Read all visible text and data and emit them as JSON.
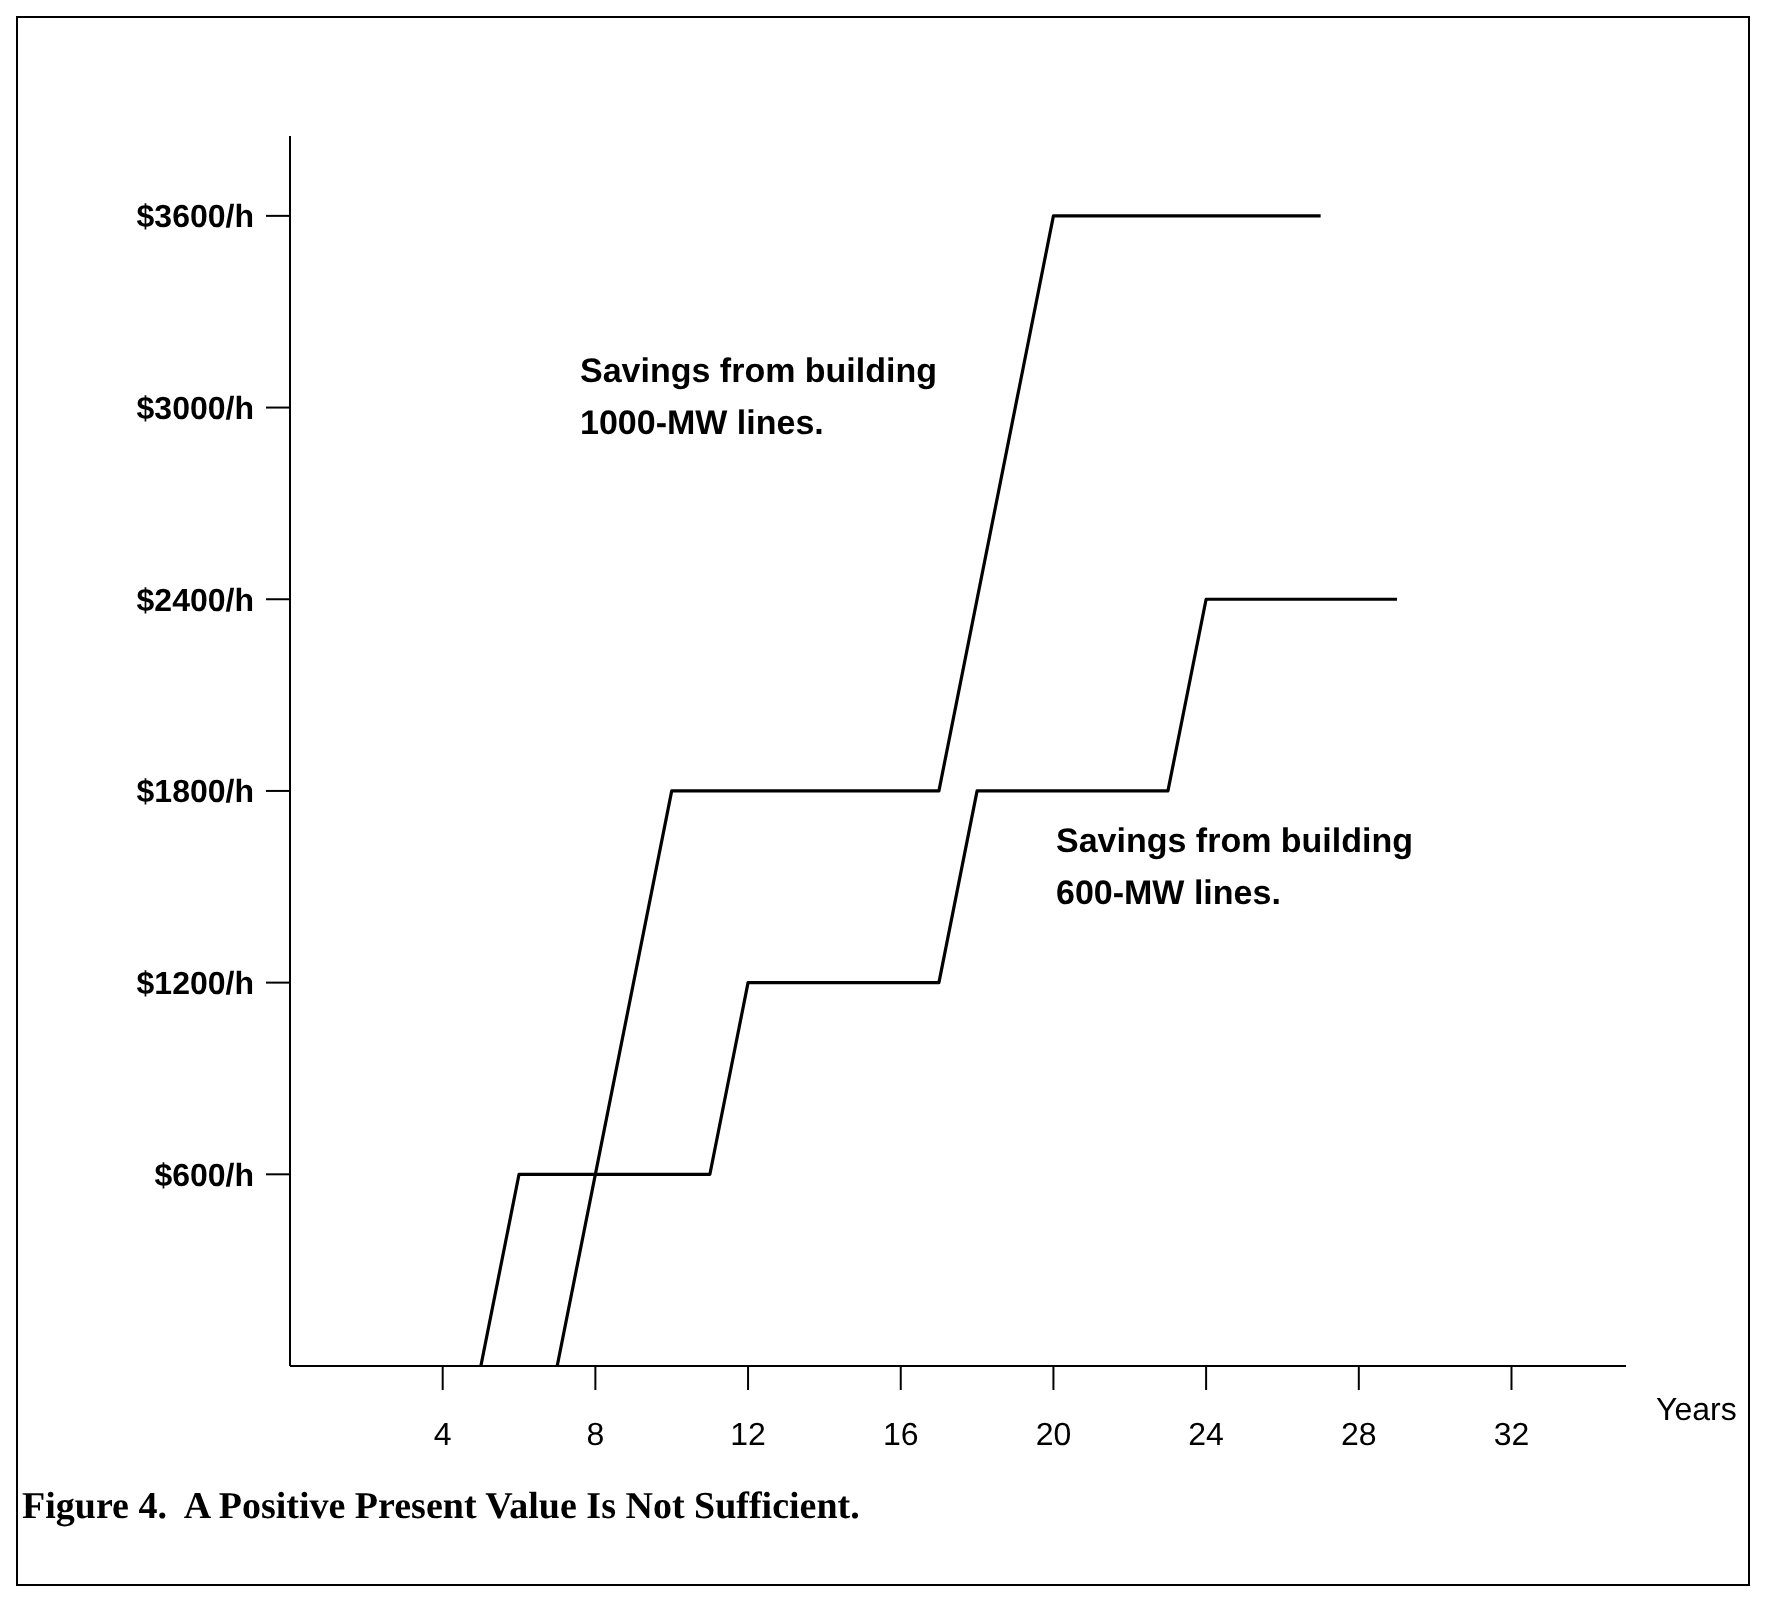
{
  "chart_data": {
    "type": "line",
    "title": "Figure 4.  A Positive Present Value Is Not Sufficient.",
    "xlabel": "Years",
    "series": [
      {
        "name": "Savings from building 1000-MW lines.",
        "color": "#000000",
        "x": [
          7,
          10,
          17,
          20,
          27
        ],
        "values": [
          0,
          1800,
          1800,
          3600,
          3600
        ]
      },
      {
        "name": "Savings from building 600-MW lines.",
        "color": "#000000",
        "x": [
          5,
          6,
          11,
          12,
          17,
          18,
          23,
          24,
          29
        ],
        "values": [
          0,
          600,
          600,
          1200,
          1200,
          1800,
          1800,
          2400,
          2400
        ]
      }
    ],
    "xlim": [
      0,
      35
    ],
    "xticks": [
      4,
      8,
      12,
      16,
      20,
      24,
      28,
      32
    ],
    "ylim": [
      0,
      3850
    ],
    "yticks": [
      {
        "value": 600,
        "label": "$600/h"
      },
      {
        "value": 1200,
        "label": "$1200/h"
      },
      {
        "value": 1800,
        "label": "$1800/h"
      },
      {
        "value": 2400,
        "label": "$2400/h"
      },
      {
        "value": 3000,
        "label": "$3000/h"
      },
      {
        "value": 3600,
        "label": "$3600/h"
      }
    ],
    "grid": false,
    "legend": false,
    "marker": "none",
    "line_style": "solid"
  }
}
